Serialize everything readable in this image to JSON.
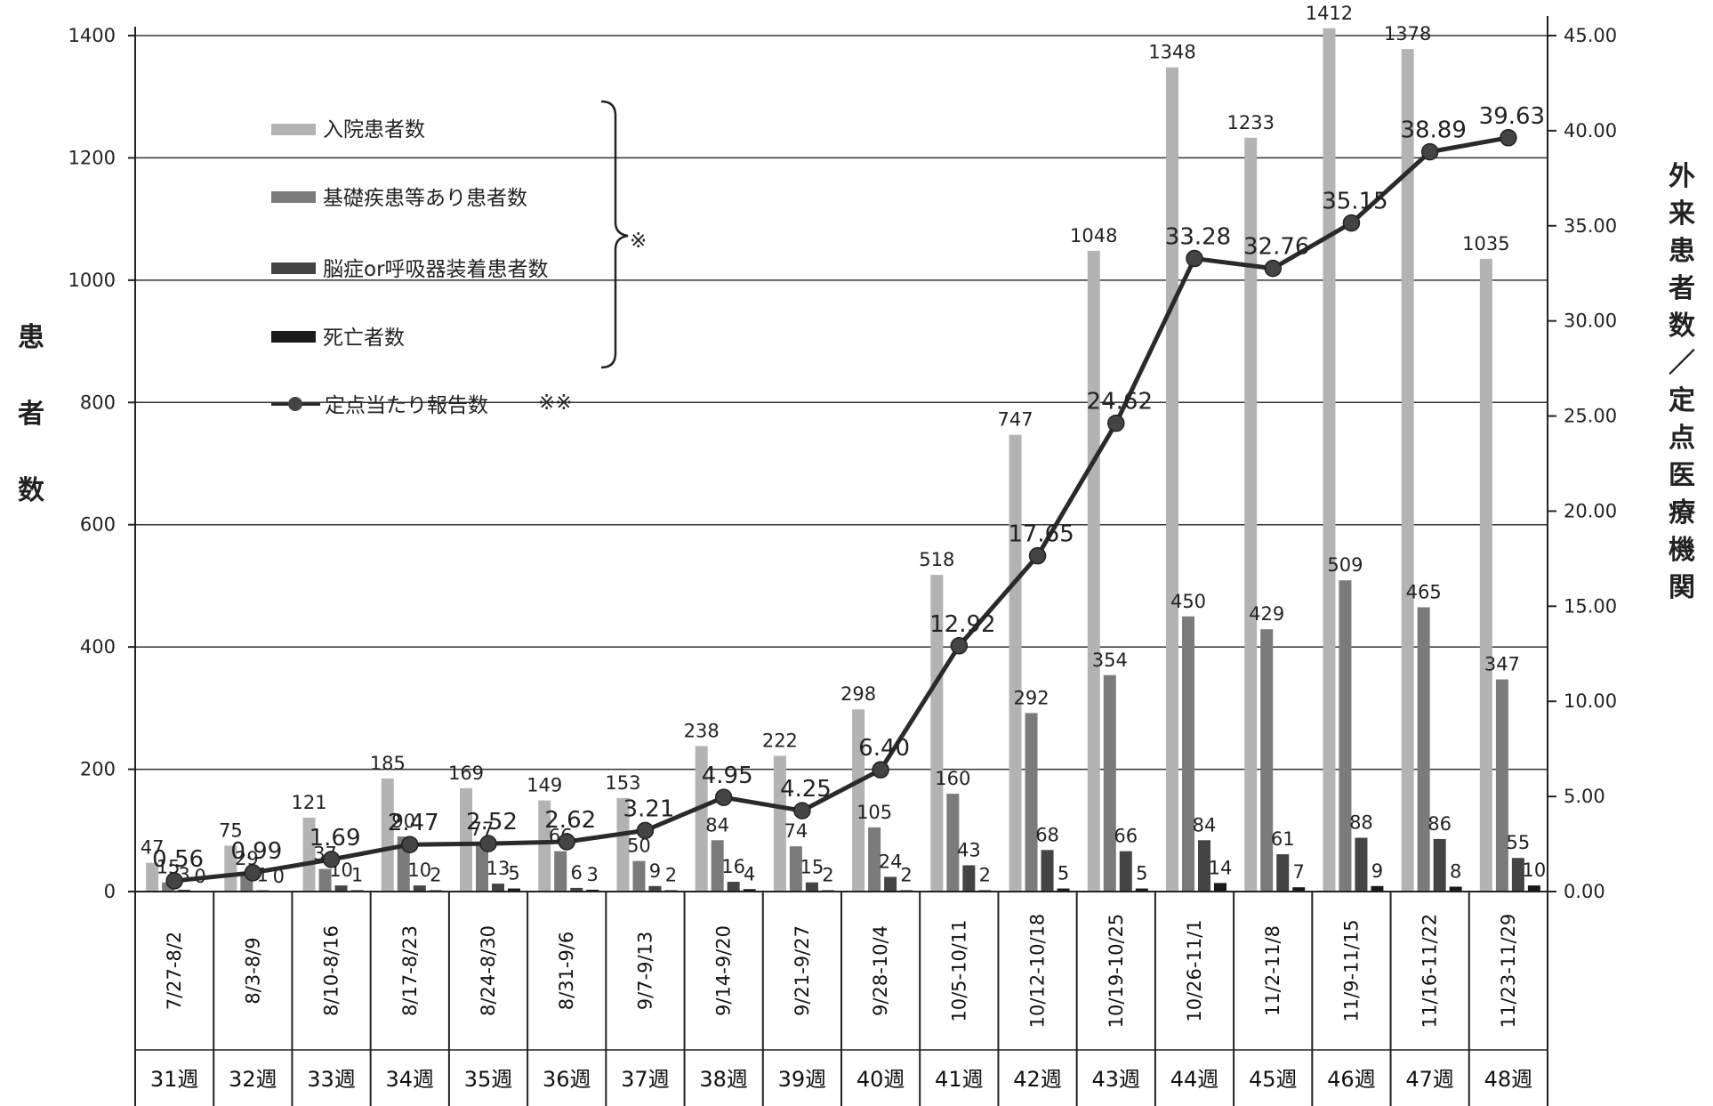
{
  "chart_data": {
    "type": "bar",
    "categories": [
      "7/27-8/2",
      "8/3-8/9",
      "8/10-8/16",
      "8/17-8/23",
      "8/24-8/30",
      "8/31-9/6",
      "9/7-9/13",
      "9/14-9/20",
      "9/21-9/27",
      "9/28-10/4",
      "10/5-10/11",
      "10/12-10/18",
      "10/19-10/25",
      "10/26-11/1",
      "11/2-11/8",
      "11/9-11/15",
      "11/16-11/22",
      "11/23-11/29"
    ],
    "weeks": [
      "31週",
      "32週",
      "33週",
      "34週",
      "35週",
      "36週",
      "37週",
      "38週",
      "39週",
      "40週",
      "41週",
      "42週",
      "43週",
      "44週",
      "45週",
      "46週",
      "47週",
      "48週"
    ],
    "series": [
      {
        "name": "入院患者数",
        "color": "#b3b3b3",
        "axis": "left",
        "values": [
          47,
          75,
          121,
          185,
          169,
          149,
          153,
          238,
          222,
          298,
          518,
          747,
          1048,
          1348,
          1233,
          1412,
          1378,
          1035
        ]
      },
      {
        "name": "基礎疾患等あり患者数",
        "color": "#7b7b7b",
        "axis": "left",
        "values": [
          15,
          29,
          37,
          90,
          77,
          66,
          50,
          84,
          74,
          105,
          160,
          292,
          354,
          450,
          429,
          509,
          465,
          347
        ]
      },
      {
        "name": "脳症or呼吸器装着患者数",
        "color": "#444444",
        "axis": "left",
        "values": [
          3,
          1,
          10,
          10,
          13,
          6,
          9,
          16,
          15,
          24,
          43,
          68,
          66,
          84,
          61,
          88,
          86,
          55
        ]
      },
      {
        "name": "死亡者数",
        "color": "#1a1a1a",
        "axis": "left",
        "values": [
          0,
          0,
          1,
          2,
          5,
          3,
          2,
          4,
          2,
          2,
          2,
          5,
          5,
          14,
          7,
          9,
          8,
          10
        ]
      },
      {
        "name": "定点当たり報告数",
        "color": "#2a2a2a",
        "axis": "right",
        "type": "line",
        "values": [
          0.56,
          0.99,
          1.69,
          2.47,
          2.52,
          2.62,
          3.21,
          4.95,
          4.25,
          6.4,
          12.92,
          17.65,
          24.62,
          33.28,
          32.76,
          35.15,
          38.89,
          39.63
        ]
      }
    ],
    "ylabel": "患\n者\n数",
    "ylabel_chars": [
      "患",
      "者",
      "数"
    ],
    "y2label_chars": [
      "外",
      "来",
      "患",
      "者",
      "数",
      "／",
      "定",
      "点",
      "医",
      "療",
      "機",
      "関"
    ],
    "ylim": [
      0,
      1400
    ],
    "y2lim": [
      0,
      45
    ],
    "yticks": [
      "0",
      "200",
      "400",
      "600",
      "800",
      "1000",
      "1200",
      "1400"
    ],
    "y2ticks": [
      "0.00",
      "5.00",
      "10.00",
      "15.00",
      "20.00",
      "25.00",
      "30.00",
      "35.00",
      "40.00",
      "45.00"
    ],
    "legend_marks": {
      "bracket_note": "※",
      "line_note": "※※"
    },
    "grid": true,
    "legend_position": "top-left"
  }
}
